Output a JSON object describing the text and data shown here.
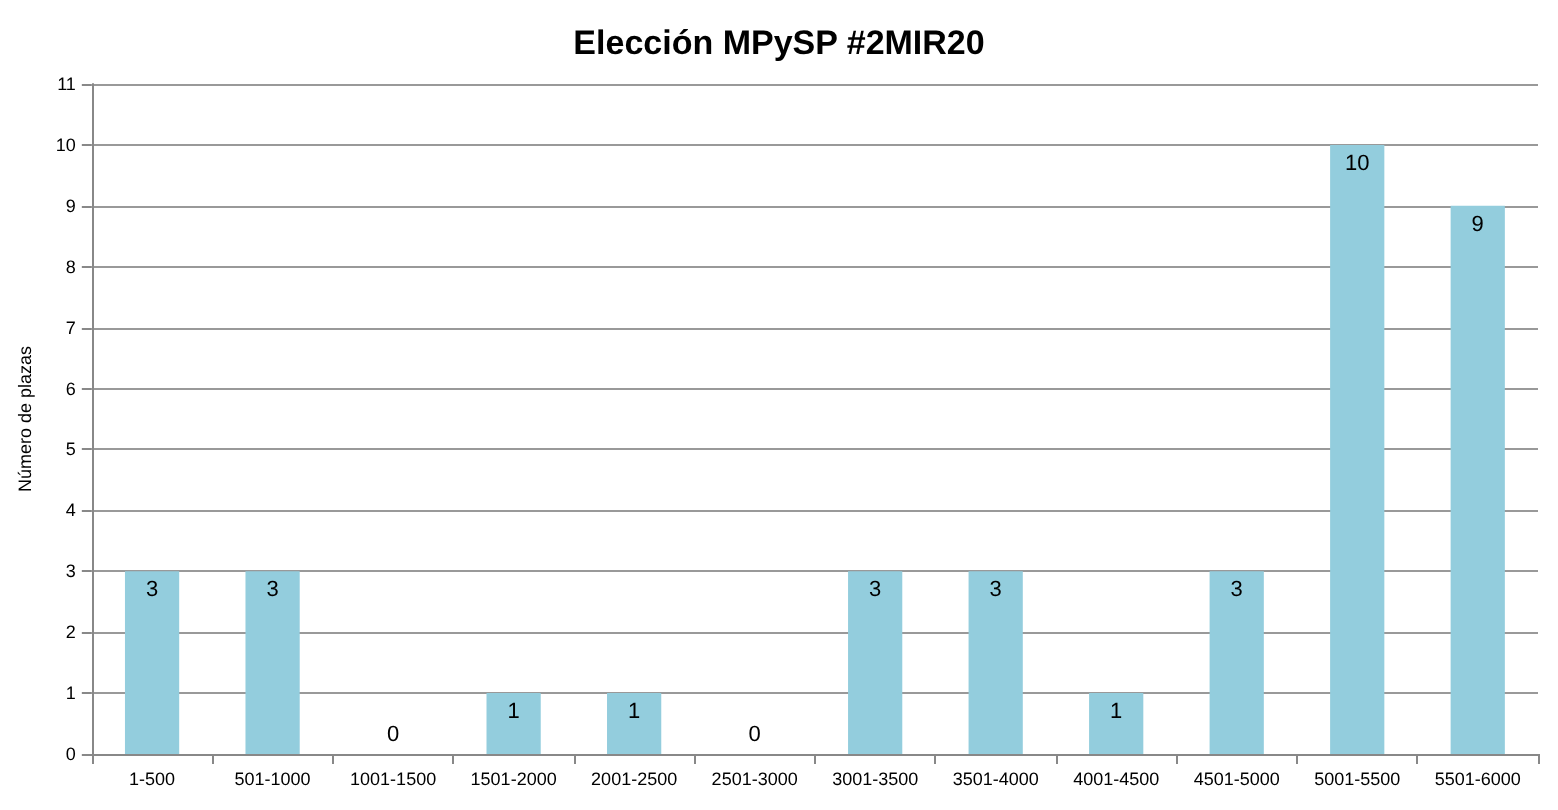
{
  "chart_data": {
    "type": "bar",
    "title": "Elección MPySP #2MIR20",
    "ylabel": "Número de plazas",
    "categories": [
      "1-500",
      "501-1000",
      "1001-1500",
      "1501-2000",
      "2001-2500",
      "2501-3000",
      "3001-3500",
      "3501-4000",
      "4001-4500",
      "4501-5000",
      "5001-5500",
      "5501-6000"
    ],
    "values": [
      3,
      3,
      0,
      1,
      1,
      0,
      3,
      3,
      1,
      3,
      10,
      9
    ],
    "color": "#93cddd",
    "ylim": [
      0,
      11
    ],
    "yticks": [
      0,
      1,
      2,
      3,
      4,
      5,
      6,
      7,
      8,
      9,
      10,
      11
    ],
    "grid": "y",
    "data_labels": true
  }
}
